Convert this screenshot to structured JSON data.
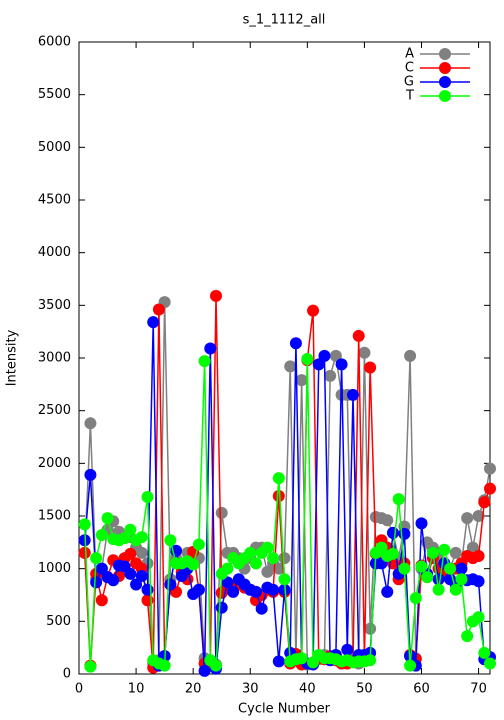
{
  "chart_data": {
    "type": "line",
    "title": "s_1_1112_all",
    "x_label": "Cycle Number",
    "y_label": "Intensity",
    "x": [
      1,
      2,
      3,
      4,
      5,
      6,
      7,
      8,
      9,
      10,
      11,
      12,
      13,
      14,
      15,
      16,
      17,
      18,
      19,
      20,
      21,
      22,
      23,
      24,
      25,
      26,
      27,
      28,
      29,
      30,
      31,
      32,
      33,
      34,
      35,
      36,
      37,
      38,
      39,
      40,
      41,
      42,
      43,
      44,
      45,
      46,
      47,
      48,
      49,
      50,
      51,
      52,
      53,
      54,
      55,
      56,
      57,
      58,
      59,
      60,
      61,
      62,
      63,
      64,
      65,
      66,
      67,
      68,
      69,
      70,
      71,
      72
    ],
    "xlim": [
      0,
      72
    ],
    "xticks": [
      0,
      10,
      20,
      30,
      40,
      50,
      60,
      70
    ],
    "ylim": [
      0,
      6000
    ],
    "yticks": [
      0,
      500,
      1000,
      1500,
      2000,
      2500,
      3000,
      3500,
      4000,
      4500,
      5000,
      5500,
      6000
    ],
    "legend": "top-right",
    "series": [
      {
        "name": "A",
        "color": "#808080",
        "values": [
          1150,
          2380,
          900,
          1000,
          1370,
          1450,
          1350,
          1300,
          1300,
          1200,
          1150,
          1050,
          100,
          130,
          3530,
          900,
          1100,
          1000,
          1150,
          1050,
          1100,
          150,
          130,
          90,
          1530,
          1150,
          1150,
          1100,
          1000,
          1100,
          1200,
          1200,
          970,
          1050,
          1000,
          1100,
          2920,
          130,
          2790,
          90,
          100,
          140,
          180,
          2830,
          3020,
          2650,
          2650,
          140,
          100,
          3050,
          430,
          1490,
          1480,
          1460,
          1340,
          1100,
          1400,
          3020,
          150,
          1000,
          1250,
          1200,
          1100,
          950,
          1000,
          1150,
          1050,
          1480,
          1200,
          1500,
          1650,
          1950
        ]
      },
      {
        "name": "C",
        "color": "#ff0000",
        "values": [
          1150,
          80,
          950,
          700,
          920,
          1080,
          930,
          1100,
          1140,
          1050,
          1000,
          700,
          60,
          3460,
          170,
          850,
          780,
          970,
          900,
          1160,
          800,
          100,
          100,
          3590,
          770,
          820,
          800,
          870,
          820,
          800,
          700,
          750,
          800,
          780,
          1690,
          780,
          100,
          190,
          90,
          2980,
          3450,
          150,
          140,
          170,
          130,
          100,
          100,
          120,
          3210,
          150,
          2910,
          1140,
          1270,
          1200,
          1050,
          900,
          1050,
          180,
          140,
          1030,
          920,
          1100,
          1000,
          950,
          1000,
          1000,
          1050,
          1120,
          1100,
          1120,
          1630,
          1760
        ]
      },
      {
        "name": "G",
        "color": "#0000ff",
        "values": [
          1270,
          1890,
          870,
          1000,
          920,
          890,
          1030,
          1020,
          950,
          850,
          930,
          800,
          3340,
          80,
          170,
          850,
          1170,
          930,
          1000,
          760,
          800,
          30,
          3090,
          50,
          630,
          870,
          780,
          900,
          850,
          800,
          780,
          620,
          820,
          800,
          120,
          800,
          200,
          3140,
          150,
          100,
          90,
          2940,
          3020,
          130,
          180,
          2940,
          230,
          2650,
          180,
          180,
          200,
          1050,
          1050,
          780,
          1340,
          950,
          1330,
          170,
          80,
          1430,
          950,
          1150,
          900,
          1050,
          900,
          850,
          1000,
          890,
          900,
          880,
          140,
          160
        ]
      },
      {
        "name": "T",
        "color": "#00ff00",
        "values": [
          1420,
          70,
          1100,
          1320,
          1480,
          1280,
          1270,
          1290,
          1370,
          1270,
          1300,
          1680,
          130,
          100,
          80,
          1270,
          1050,
          1050,
          1070,
          1040,
          1230,
          2970,
          130,
          80,
          950,
          1000,
          1100,
          1050,
          1100,
          1150,
          1050,
          1150,
          1200,
          1100,
          1860,
          900,
          120,
          140,
          150,
          2990,
          110,
          180,
          150,
          150,
          140,
          120,
          130,
          110,
          120,
          120,
          130,
          1150,
          1200,
          1120,
          1140,
          1660,
          1000,
          80,
          720,
          1020,
          920,
          1150,
          800,
          1180,
          1000,
          800,
          900,
          360,
          500,
          540,
          200,
          100
        ]
      }
    ]
  }
}
